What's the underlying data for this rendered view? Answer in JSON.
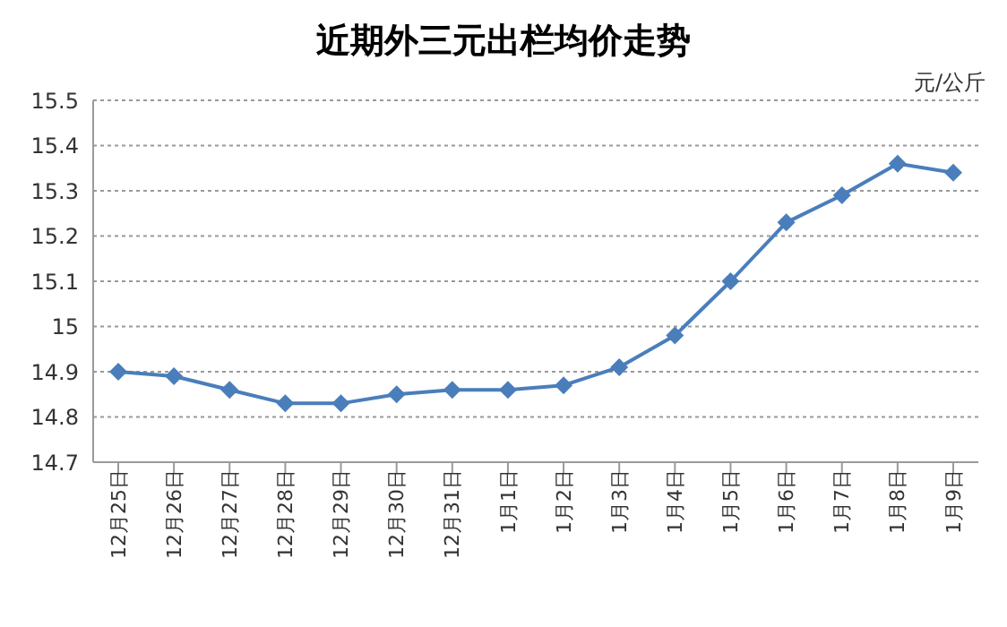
{
  "chart_data": {
    "type": "line",
    "title": "近期外三元出栏均价走势",
    "ylabel": "元/公斤",
    "categories": [
      "12月25日",
      "12月26日",
      "12月27日",
      "12月28日",
      "12月29日",
      "12月30日",
      "12月31日",
      "1月1日",
      "1月2日",
      "1月3日",
      "1月4日",
      "1月5日",
      "1月6日",
      "1月7日",
      "1月8日",
      "1月9日"
    ],
    "series": [
      {
        "color": "#4a7ebb",
        "values": [
          14.9,
          14.89,
          14.86,
          14.83,
          14.83,
          14.85,
          14.86,
          14.86,
          14.87,
          14.91,
          14.98,
          15.1,
          15.23,
          15.29,
          15.36,
          15.34
        ]
      }
    ],
    "ylim": [
      14.7,
      15.5
    ],
    "yticks": [
      14.7,
      14.8,
      14.9,
      15,
      15.1,
      15.2,
      15.3,
      15.4,
      15.5
    ],
    "grid": "y",
    "marker": "diamond",
    "line_style": "solid"
  }
}
